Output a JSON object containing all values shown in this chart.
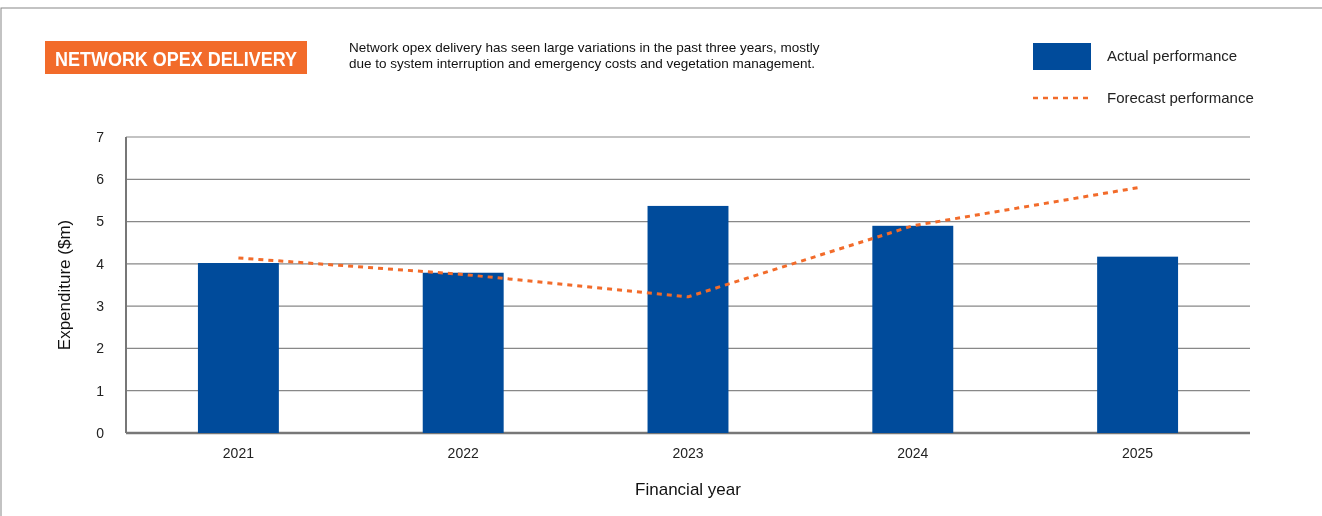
{
  "chart_data": {
    "type": "bar",
    "title": "NETWORK OPEX DELIVERY",
    "subtitle": "Network opex delivery has seen large variations in the past three years, mostly due to system interruption and emergency costs and vegetation management.",
    "xlabel": "Financial year",
    "ylabel": "Expenditure ($m)",
    "categories": [
      "2021",
      "2022",
      "2023",
      "2024",
      "2025"
    ],
    "series": [
      {
        "name": "Actual performance",
        "color": "#004b9b",
        "values": [
          4.02,
          3.79,
          5.37,
          4.9,
          4.17
        ]
      },
      {
        "name": "Forecast performance",
        "type": "line",
        "color": "#f26b2a",
        "line_style": "dashed",
        "values": [
          4.14,
          3.75,
          3.22,
          4.9,
          5.8
        ]
      }
    ],
    "ylim": [
      0,
      7
    ],
    "yticks": [
      0,
      1,
      2,
      3,
      4,
      5,
      6,
      7
    ],
    "grid": "y",
    "legend": "top right"
  }
}
